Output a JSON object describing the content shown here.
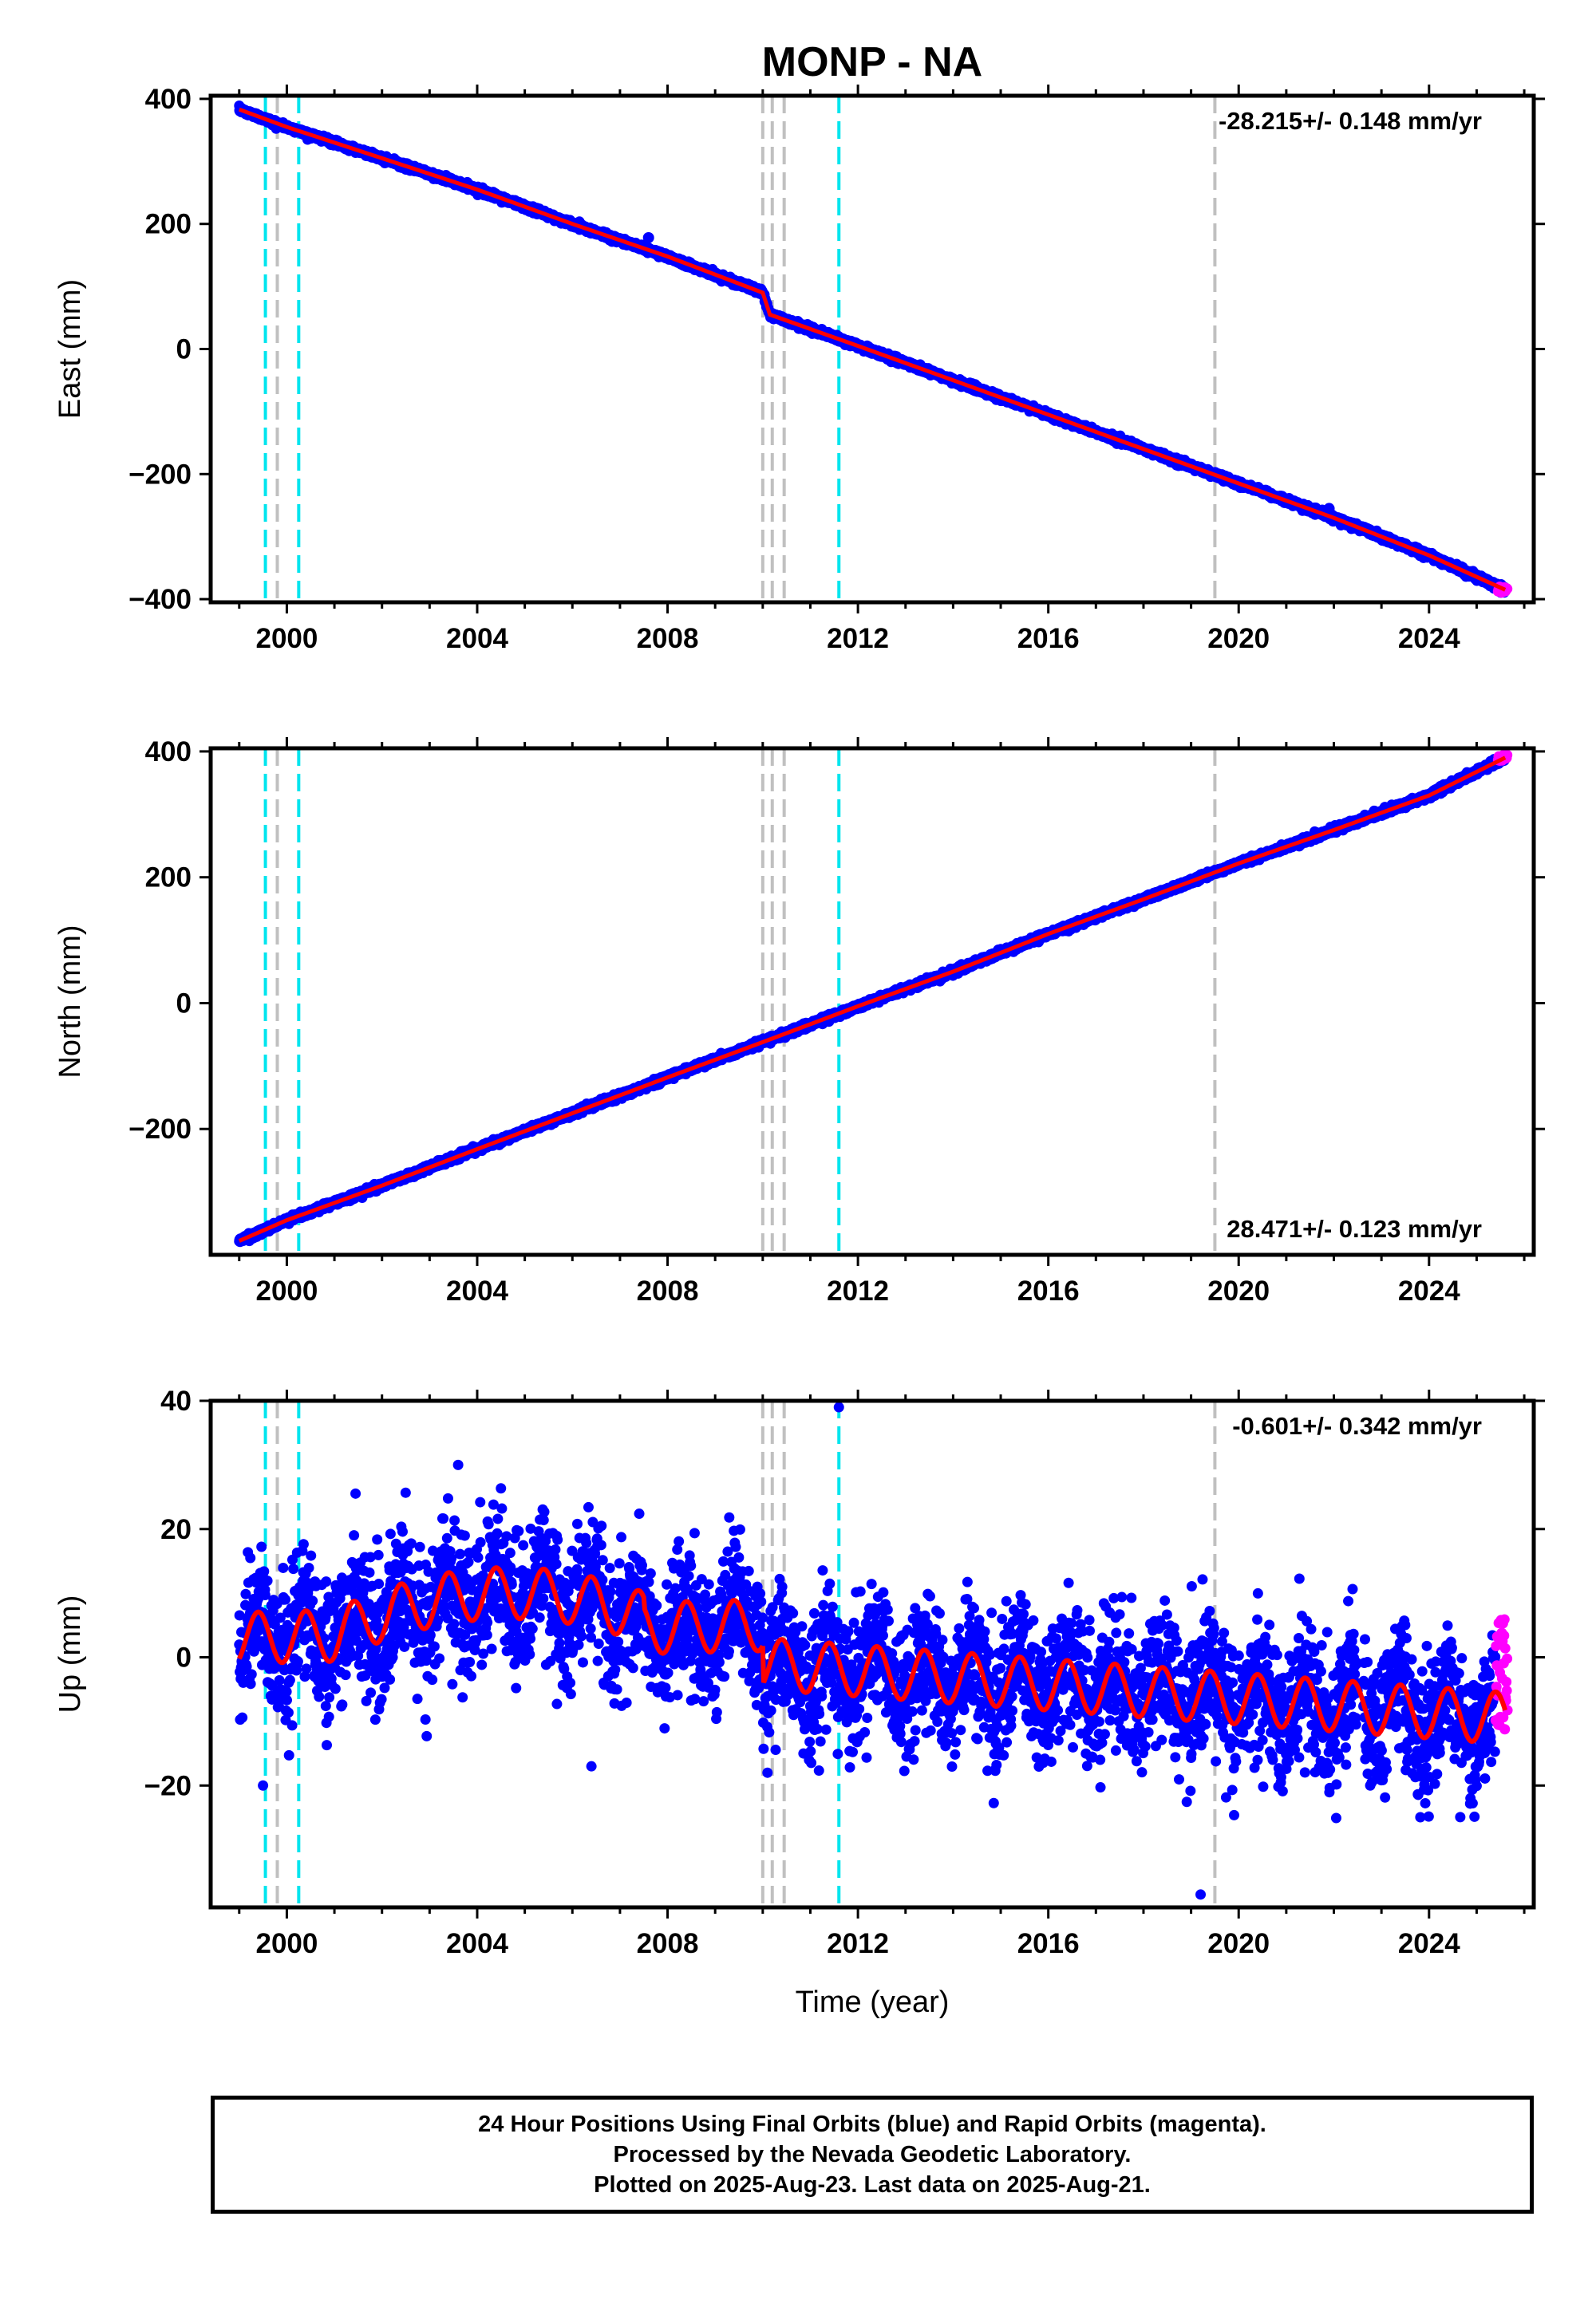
{
  "title": "MONP - NA",
  "xlabel": "Time (year)",
  "colors": {
    "final_orbits": "#0000ff",
    "rapid_orbits": "#ff00ff",
    "model": "#ff0000",
    "equipment_change": "#00e5ee",
    "other_event": "#c0c0c0"
  },
  "event_lines": {
    "equipment_change_years": [
      1999.55,
      2000.25,
      2011.6
    ],
    "other_event_years": [
      1999.8,
      2010.0,
      2010.2,
      2010.45,
      2019.5
    ]
  },
  "chart_data": [
    {
      "type": "scatter",
      "component": "East",
      "ylabel": "East (mm)",
      "xlim": [
        1998.4,
        2026.2
      ],
      "ylim": [
        -405,
        405
      ],
      "xticks": [
        "2000",
        "2004",
        "2008",
        "2012",
        "2016",
        "2020",
        "2024"
      ],
      "yticks": [
        "400",
        "200",
        "0",
        "−200",
        "−400"
      ],
      "rate_label": "-28.215+/- 0.148 mm/yr",
      "rate_position": "top-right",
      "series": [
        {
          "x": [
            1999.0,
            2000.0,
            2002.0,
            2004.0,
            2006.0,
            2008.0,
            2010.0,
            2010.15,
            2012.0,
            2014.0,
            2016.0,
            2018.0,
            2020.0,
            2022.0,
            2024.0,
            2025.6
          ],
          "y": [
            383,
            355,
            305,
            255,
            200,
            148,
            90,
            55,
            5,
            -50,
            -105,
            -160,
            -215,
            -270,
            -330,
            -385
          ]
        }
      ],
      "outliers": [
        {
          "x": 2021.9,
          "y": -255
        },
        {
          "x": 2007.6,
          "y": 178
        }
      ]
    },
    {
      "type": "scatter",
      "component": "North",
      "ylabel": "North (mm)",
      "xlim": [
        1998.4,
        2026.2
      ],
      "ylim": [
        -400,
        405
      ],
      "xticks": [
        "2000",
        "2004",
        "2008",
        "2012",
        "2016",
        "2020",
        "2024"
      ],
      "yticks": [
        "400",
        "200",
        "0",
        "−200"
      ],
      "rate_label": "28.471+/- 0.123 mm/yr",
      "rate_position": "bottom-right",
      "series": [
        {
          "x": [
            1999.0,
            2000.0,
            2002.0,
            2004.0,
            2006.0,
            2008.0,
            2010.0,
            2012.0,
            2014.0,
            2016.0,
            2018.0,
            2020.0,
            2022.0,
            2024.0,
            2025.6
          ],
          "y": [
            -378,
            -345,
            -290,
            -232,
            -175,
            -118,
            -62,
            -5,
            50,
            110,
            165,
            222,
            275,
            330,
            390
          ]
        }
      ]
    },
    {
      "type": "scatter",
      "component": "Up",
      "ylabel": "Up (mm)",
      "xlim": [
        1998.4,
        2026.2
      ],
      "ylim": [
        -39,
        40
      ],
      "xticks": [
        "2000",
        "2004",
        "2008",
        "2012",
        "2016",
        "2020",
        "2024"
      ],
      "yticks": [
        "40",
        "20",
        "0",
        "−20"
      ],
      "rate_label": "-0.601+/- 0.342 mm/yr",
      "rate_position": "top-right",
      "model": {
        "segments": [
          {
            "x_start": 1999.0,
            "x_end": 2010.0,
            "mean_start": 3.0,
            "mean_end": 5.0,
            "bump_years": [
              [
                2002.5,
                2006.5,
                6.0
              ]
            ]
          },
          {
            "x_start": 2010.0,
            "x_end": 2025.6,
            "mean_start": -1.0,
            "mean_end": -9.5
          }
        ],
        "annual_amplitude": 4.0
      },
      "outliers": [
        {
          "x": 2011.6,
          "y": 39
        },
        {
          "x": 2019.2,
          "y": -37
        },
        {
          "x": 1999.5,
          "y": -20
        },
        {
          "x": 2010.1,
          "y": -18
        },
        {
          "x": 2006.4,
          "y": -17
        },
        {
          "x": 2003.6,
          "y": 30
        }
      ],
      "rapid_orbits": {
        "x_start": 2025.4,
        "x_end": 2025.65,
        "y_range": [
          -12,
          7
        ]
      }
    }
  ],
  "footer": {
    "line1": "24 Hour Positions Using Final Orbits (blue) and Rapid Orbits (magenta).",
    "line2": "Processed by the Nevada Geodetic Laboratory.",
    "line3": "Plotted on 2025-Aug-23. Last data on 2025-Aug-21."
  }
}
